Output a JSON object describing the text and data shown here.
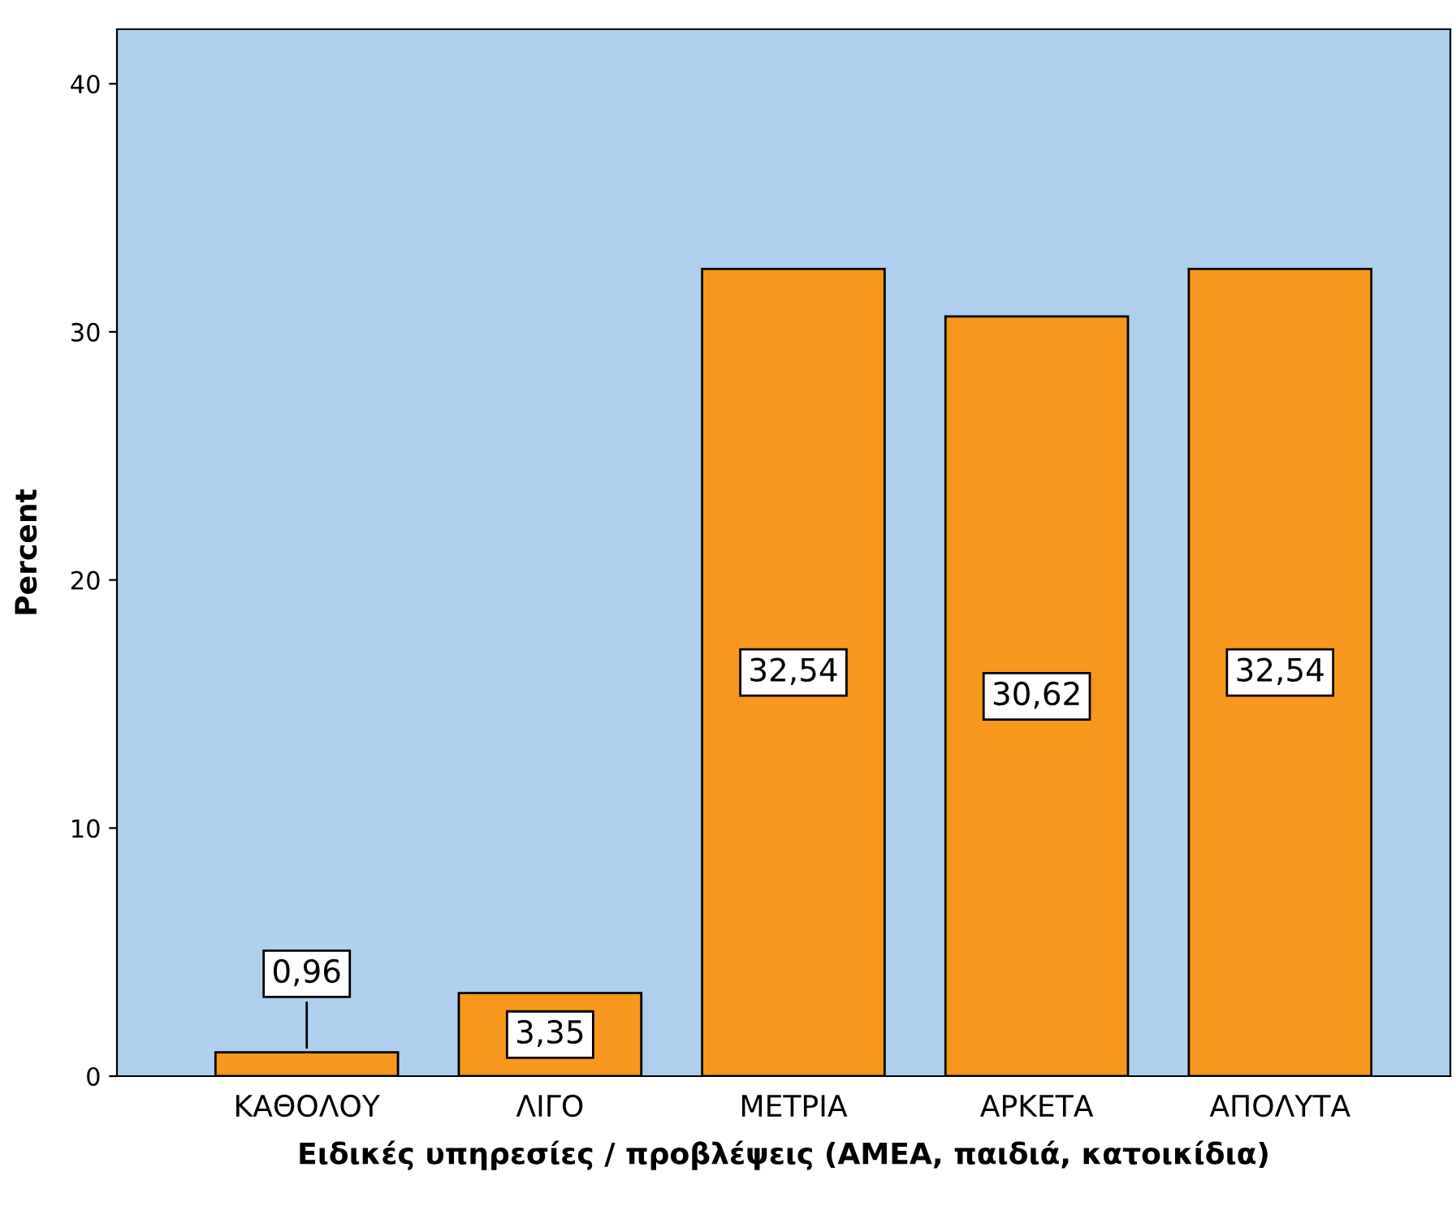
{
  "chart_data": {
    "type": "bar",
    "xlabel": "Ειδικές υπηρεσίες / προβλέψεις (ΑΜΕΑ, παιδιά, κατοικίδια)",
    "ylabel": "Percent",
    "categories": [
      "ΚΑΘΟΛΟΥ",
      "ΛΙΓΟ",
      "ΜΕΤΡΙΑ",
      "ΑΡΚΕΤΑ",
      "ΑΠΟΛΥΤΑ"
    ],
    "values": [
      0.96,
      3.35,
      32.54,
      30.62,
      32.54
    ],
    "value_labels": [
      "0,96",
      "3,35",
      "32,54",
      "30,62",
      "32,54"
    ],
    "color": "#f7971e",
    "ylim": [
      0,
      42.2
    ],
    "yticks": [
      0,
      10,
      20,
      30,
      40
    ],
    "grid": false,
    "legend": false
  }
}
